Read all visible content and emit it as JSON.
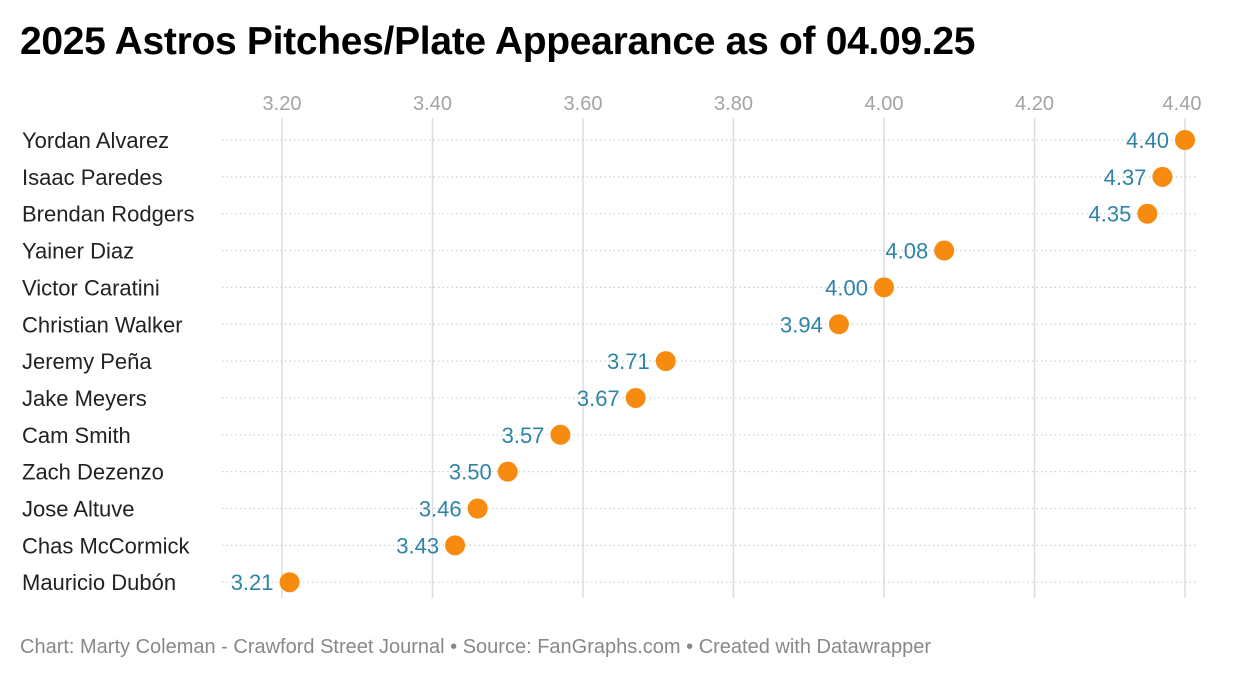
{
  "header": {
    "title": "2025 Astros Pitches/Plate Appearance as of 04.09.25"
  },
  "footer": {
    "credit": "Chart: Marty Coleman - Crawford Street Journal • Source: FanGraphs.com • Created with Datawrapper"
  },
  "colors": {
    "dot": "#f68b0f",
    "value_label": "#2e84a6",
    "grid": "#dddddd",
    "row_line": "#cfcfcf"
  },
  "chart_data": {
    "type": "scatter",
    "title": "2025 Astros Pitches/Plate Appearance as of 04.09.25",
    "categories": [
      "Yordan Alvarez",
      "Isaac Paredes",
      "Brendan Rodgers",
      "Yainer Diaz",
      "Victor Caratini",
      "Christian Walker",
      "Jeremy Peña",
      "Jake Meyers",
      "Cam Smith",
      "Zach Dezenzo",
      "Jose Altuve",
      "Chas McCormick",
      "Mauricio Dubón"
    ],
    "values": [
      4.4,
      4.37,
      4.35,
      4.08,
      4.0,
      3.94,
      3.71,
      3.67,
      3.57,
      3.5,
      3.46,
      3.43,
      3.21
    ],
    "value_labels": [
      "4.40",
      "4.37",
      "4.35",
      "4.08",
      "4.00",
      "3.94",
      "3.71",
      "3.67",
      "3.57",
      "3.50",
      "3.46",
      "3.43",
      "3.21"
    ],
    "x_ticks": [
      3.2,
      3.4,
      3.6,
      3.8,
      4.0,
      4.2,
      4.4
    ],
    "x_tick_labels": [
      "3.20",
      "3.40",
      "3.60",
      "3.80",
      "4.00",
      "4.20",
      "4.40"
    ],
    "xlim": [
      3.2,
      4.4
    ],
    "grid": true,
    "xaxis_position": "top"
  }
}
